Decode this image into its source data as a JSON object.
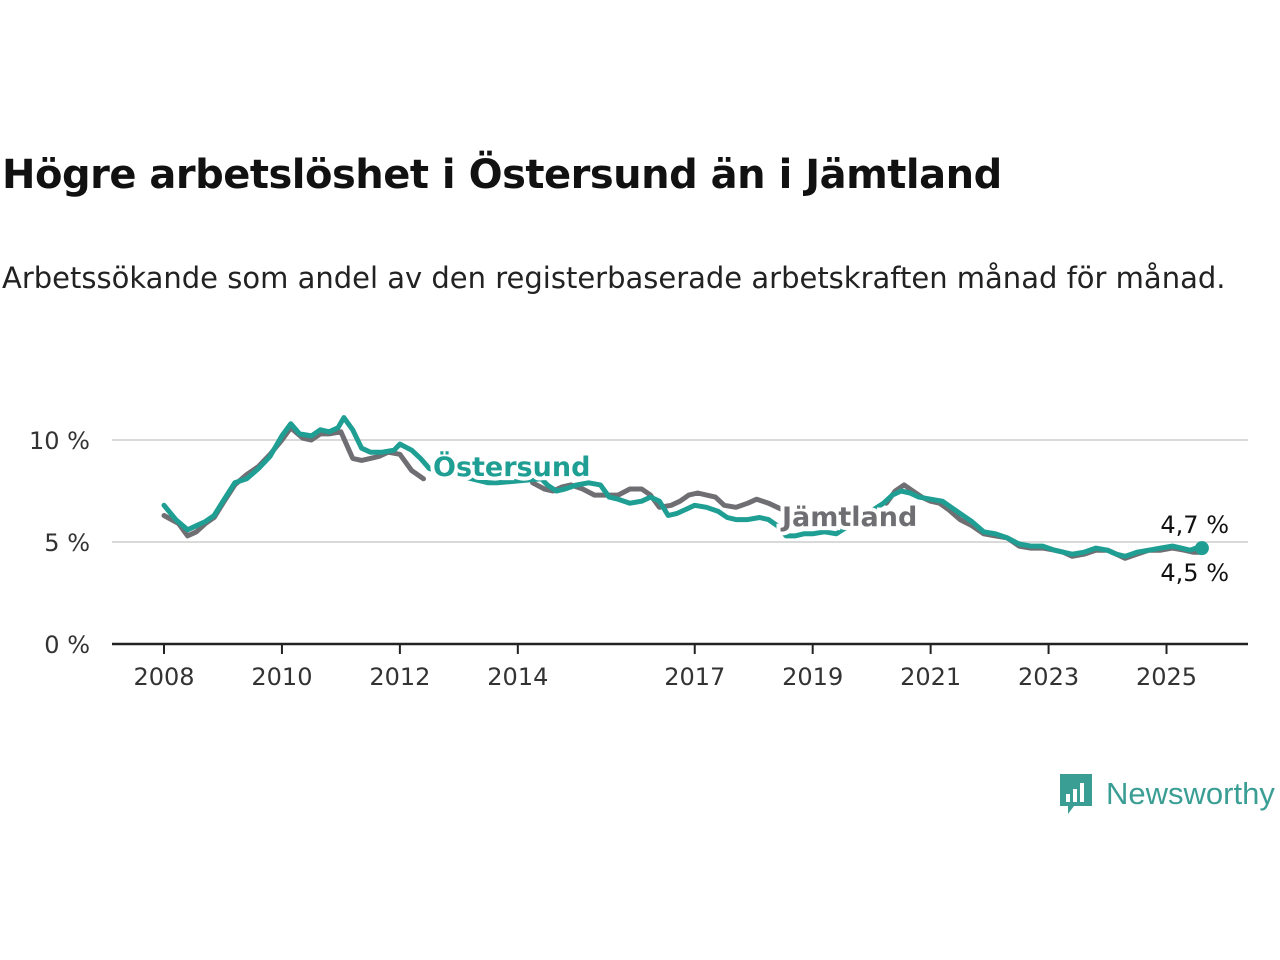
{
  "title": "Högre arbetslöshet i Östersund än i Jämtland",
  "subtitle": "Arbetssökande som andel av den registerbaserade arbetskraften månad för månad.",
  "logo": {
    "text": "Newsworthy",
    "icon": "newsworthy-chart-icon",
    "color": "#3b9e94"
  },
  "chart_data": {
    "type": "line",
    "title": "Högre arbetslöshet i Östersund än i Jämtland",
    "subtitle": "Arbetssökande som andel av den registerbaserade arbetskraften månad för månad.",
    "xlabel": "",
    "ylabel": "",
    "ylim": [
      0,
      10
    ],
    "xlim": [
      2008,
      2026.4
    ],
    "yticks": [
      0,
      5,
      10
    ],
    "ytick_labels": [
      "0 %",
      "5 %",
      "10 %"
    ],
    "xticks": [
      2008,
      2010,
      2012,
      2014,
      2017,
      2019,
      2021,
      2023,
      2025
    ],
    "xtick_labels": [
      "2008",
      "2010",
      "2012",
      "2014",
      "2017",
      "2019",
      "2021",
      "2023",
      "2025"
    ],
    "grid": true,
    "legend": "inline labels",
    "series": [
      {
        "name": "Jämtland",
        "color": "#6f6f73",
        "label_value": "4,5 %",
        "x": [
          2008.0,
          2008.25,
          2008.4,
          2008.55,
          2008.7,
          2008.85,
          2009.0,
          2009.2,
          2009.4,
          2009.6,
          2009.8,
          2010.0,
          2010.15,
          2010.35,
          2010.5,
          2010.65,
          2010.8,
          2011.0,
          2011.2,
          2011.35,
          2011.5,
          2011.65,
          2011.8,
          2012.0,
          2012.2,
          2012.4,
          2012.5,
          2014.25,
          2014.45,
          2014.6,
          2014.75,
          2014.9,
          2015.1,
          2015.3,
          2015.5,
          2015.7,
          2015.9,
          2016.1,
          2016.25,
          2016.4,
          2016.6,
          2016.75,
          2016.9,
          2017.05,
          2017.2,
          2017.35,
          2017.5,
          2017.7,
          2017.9,
          2018.05,
          2018.25,
          2018.4,
          2018.55,
          2018.7,
          2018.85,
          2018.95,
          2020.25,
          2020.4,
          2020.55,
          2020.7,
          2020.85,
          2021.0,
          2021.15,
          2021.3,
          2021.5,
          2021.7,
          2021.9,
          2022.1,
          2022.3,
          2022.5,
          2022.7,
          2022.9,
          2023.1,
          2023.25,
          2023.4,
          2023.6,
          2023.8,
          2024.0,
          2024.15,
          2024.3,
          2024.5,
          2024.7,
          2024.9,
          2025.1,
          2025.3,
          2025.45,
          2025.6
        ],
        "y": [
          6.3,
          5.9,
          5.3,
          5.5,
          5.9,
          6.2,
          6.9,
          7.8,
          8.3,
          8.7,
          9.3,
          10.0,
          10.6,
          10.1,
          10.0,
          10.3,
          10.3,
          10.4,
          9.1,
          9.0,
          9.1,
          9.2,
          9.4,
          9.3,
          8.5,
          8.1,
          null,
          7.9,
          7.6,
          7.5,
          7.7,
          7.8,
          7.6,
          7.3,
          7.3,
          7.3,
          7.6,
          7.6,
          7.3,
          6.7,
          6.8,
          7.0,
          7.3,
          7.4,
          7.3,
          7.2,
          6.8,
          6.7,
          6.9,
          7.1,
          6.9,
          6.7,
          6.5,
          6.1,
          5.9,
          null,
          6.9,
          7.5,
          7.8,
          7.5,
          7.2,
          7.0,
          6.9,
          6.6,
          6.1,
          5.8,
          5.4,
          5.3,
          5.2,
          4.8,
          4.7,
          4.7,
          4.6,
          4.5,
          4.3,
          4.4,
          4.6,
          4.6,
          4.4,
          4.2,
          4.4,
          4.6,
          4.6,
          4.7,
          4.6,
          4.5,
          4.5
        ]
      },
      {
        "name": "Östersund",
        "color": "#1f9e93",
        "label_value": "4,7 %",
        "x": [
          2008.0,
          2008.2,
          2008.4,
          2008.55,
          2008.7,
          2008.85,
          2009.0,
          2009.2,
          2009.4,
          2009.6,
          2009.8,
          2010.0,
          2010.15,
          2010.3,
          2010.5,
          2010.65,
          2010.8,
          2010.95,
          2011.05,
          2011.2,
          2011.35,
          2011.5,
          2011.7,
          2011.9,
          2012.0,
          2012.2,
          2012.35,
          2012.5,
          2013.5,
          2013.65,
          2014.4,
          2014.5,
          2014.65,
          2014.8,
          2015.0,
          2015.2,
          2015.4,
          2015.55,
          2015.7,
          2015.9,
          2016.1,
          2016.25,
          2016.4,
          2016.55,
          2016.7,
          2016.85,
          2017.0,
          2017.2,
          2017.4,
          2017.55,
          2017.7,
          2017.9,
          2018.1,
          2018.25,
          2018.4,
          2018.55,
          2018.7,
          2018.85,
          2019.0,
          2019.2,
          2019.4,
          2020.2,
          2020.35,
          2020.5,
          2020.65,
          2020.8,
          2021.0,
          2021.2,
          2021.4,
          2021.55,
          2021.7,
          2021.9,
          2022.1,
          2022.3,
          2022.5,
          2022.7,
          2022.9,
          2023.1,
          2023.25,
          2023.4,
          2023.6,
          2023.8,
          2024.0,
          2024.15,
          2024.3,
          2024.5,
          2024.7,
          2024.9,
          2025.1,
          2025.25,
          2025.4,
          2025.5,
          2025.6
        ],
        "y": [
          6.8,
          6.1,
          5.6,
          5.8,
          6.0,
          6.3,
          7.0,
          7.9,
          8.1,
          8.6,
          9.2,
          10.2,
          10.8,
          10.3,
          10.2,
          10.5,
          10.4,
          10.6,
          11.1,
          10.5,
          9.6,
          9.4,
          9.4,
          9.5,
          9.8,
          9.5,
          9.1,
          8.6,
          7.9,
          7.9,
          8.1,
          7.8,
          7.5,
          7.6,
          7.8,
          7.9,
          7.8,
          7.2,
          7.1,
          6.9,
          7.0,
          7.2,
          7.0,
          6.3,
          6.4,
          6.6,
          6.8,
          6.7,
          6.5,
          6.2,
          6.1,
          6.1,
          6.2,
          6.1,
          5.8,
          5.3,
          5.3,
          5.4,
          5.4,
          5.5,
          5.4,
          6.9,
          7.3,
          7.5,
          7.4,
          7.2,
          7.1,
          7.0,
          6.6,
          6.3,
          6.0,
          5.5,
          5.4,
          5.2,
          4.9,
          4.8,
          4.8,
          4.6,
          4.5,
          4.4,
          4.5,
          4.7,
          4.6,
          4.4,
          4.3,
          4.5,
          4.6,
          4.7,
          4.8,
          4.7,
          4.6,
          4.7,
          4.7
        ]
      }
    ],
    "end_labels": [
      "4,7 %",
      "4,5 %"
    ]
  }
}
